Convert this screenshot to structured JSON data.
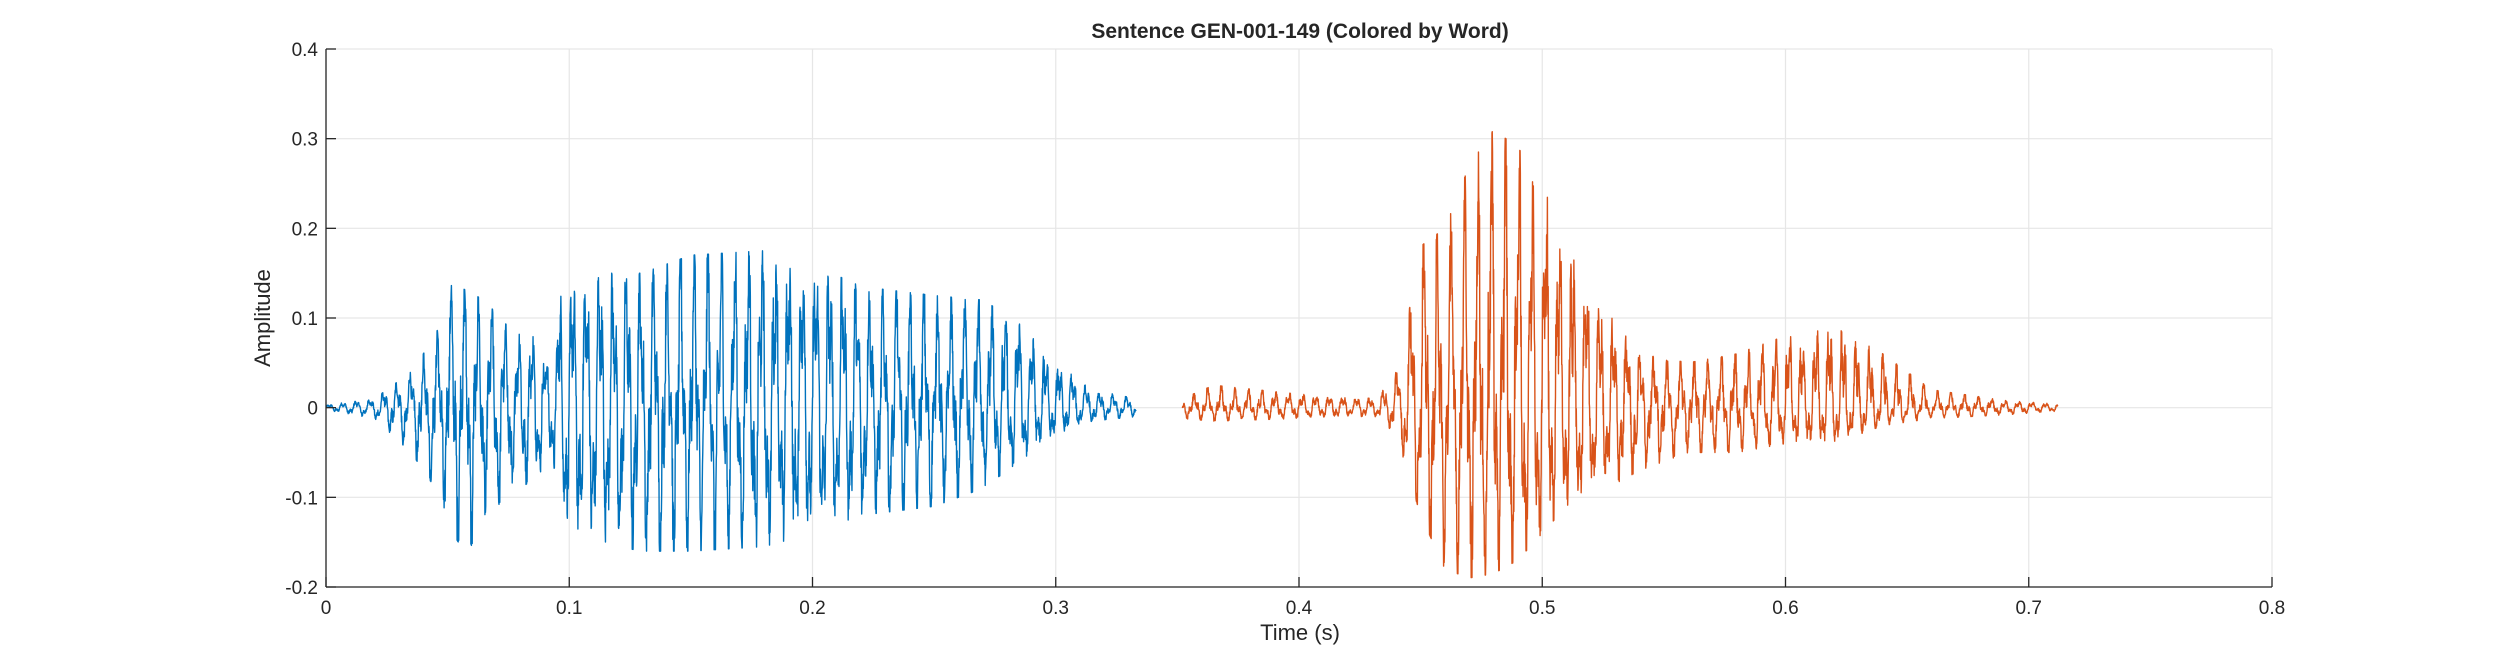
{
  "chart_data": {
    "type": "line",
    "title": "Sentence GEN-001-149 (Colored by Word)",
    "xlabel": "Time (s)",
    "ylabel": "Amplitude",
    "xlim": [
      0,
      0.8
    ],
    "ylim": [
      -0.2,
      0.4
    ],
    "xticks": [
      0,
      0.1,
      0.2,
      0.3,
      0.4,
      0.5,
      0.6,
      0.7,
      0.8
    ],
    "xtick_labels": [
      "0",
      "0.1",
      "0.2",
      "0.3",
      "0.4",
      "0.5",
      "0.6",
      "0.7",
      "0.8"
    ],
    "yticks": [
      -0.2,
      -0.1,
      0,
      0.1,
      0.2,
      0.3,
      0.4
    ],
    "ytick_labels": [
      "-0.2",
      "-0.1",
      "0",
      "0.1",
      "0.2",
      "0.3",
      "0.4"
    ],
    "grid": true,
    "legend": "none",
    "series": [
      {
        "color": "#0072BD",
        "t_start": 0.0,
        "t_end": 0.333,
        "envelope": [
          {
            "t": 0.0,
            "pos": 0.003,
            "neg": -0.003
          },
          {
            "t": 0.02,
            "pos": 0.01,
            "neg": -0.012
          },
          {
            "t": 0.035,
            "pos": 0.04,
            "neg": -0.05
          },
          {
            "t": 0.045,
            "pos": 0.08,
            "neg": -0.09
          },
          {
            "t": 0.052,
            "pos": 0.14,
            "neg": -0.14
          },
          {
            "t": 0.058,
            "pos": 0.13,
            "neg": -0.165
          },
          {
            "t": 0.065,
            "pos": 0.12,
            "neg": -0.12
          },
          {
            "t": 0.075,
            "pos": 0.09,
            "neg": -0.1
          },
          {
            "t": 0.085,
            "pos": 0.08,
            "neg": -0.08
          },
          {
            "t": 0.093,
            "pos": 0.05,
            "neg": -0.06
          },
          {
            "t": 0.097,
            "pos": 0.14,
            "neg": -0.13
          },
          {
            "t": 0.11,
            "pos": 0.15,
            "neg": -0.15
          },
          {
            "t": 0.13,
            "pos": 0.15,
            "neg": -0.16
          },
          {
            "t": 0.15,
            "pos": 0.17,
            "neg": -0.16
          },
          {
            "t": 0.18,
            "pos": 0.175,
            "neg": -0.155
          },
          {
            "t": 0.2,
            "pos": 0.16,
            "neg": -0.14
          },
          {
            "t": 0.22,
            "pos": 0.135,
            "neg": -0.12
          },
          {
            "t": 0.25,
            "pos": 0.125,
            "neg": -0.11
          },
          {
            "t": 0.27,
            "pos": 0.12,
            "neg": -0.09
          },
          {
            "t": 0.285,
            "pos": 0.095,
            "neg": -0.06
          },
          {
            "t": 0.3,
            "pos": 0.05,
            "neg": -0.03
          },
          {
            "t": 0.315,
            "pos": 0.02,
            "neg": -0.015
          },
          {
            "t": 0.333,
            "pos": 0.01,
            "neg": -0.01
          }
        ]
      },
      {
        "color": "#D95319",
        "t_start": 0.352,
        "t_end": 0.712,
        "envelope": [
          {
            "t": 0.352,
            "pos": 0.01,
            "neg": -0.012
          },
          {
            "t": 0.365,
            "pos": 0.025,
            "neg": -0.015
          },
          {
            "t": 0.4,
            "pos": 0.015,
            "neg": -0.012
          },
          {
            "t": 0.432,
            "pos": 0.01,
            "neg": -0.01
          },
          {
            "t": 0.44,
            "pos": 0.04,
            "neg": -0.03
          },
          {
            "t": 0.45,
            "pos": 0.18,
            "neg": -0.12
          },
          {
            "t": 0.46,
            "pos": 0.2,
            "neg": -0.18
          },
          {
            "t": 0.47,
            "pos": 0.27,
            "neg": -0.19
          },
          {
            "t": 0.48,
            "pos": 0.31,
            "neg": -0.185
          },
          {
            "t": 0.49,
            "pos": 0.29,
            "neg": -0.17
          },
          {
            "t": 0.5,
            "pos": 0.25,
            "neg": -0.14
          },
          {
            "t": 0.51,
            "pos": 0.2,
            "neg": -0.11
          },
          {
            "t": 0.52,
            "pos": 0.13,
            "neg": -0.1
          },
          {
            "t": 0.54,
            "pos": 0.06,
            "neg": -0.07
          },
          {
            "t": 0.56,
            "pos": 0.05,
            "neg": -0.05
          },
          {
            "t": 0.58,
            "pos": 0.06,
            "neg": -0.05
          },
          {
            "t": 0.6,
            "pos": 0.08,
            "neg": -0.04
          },
          {
            "t": 0.62,
            "pos": 0.09,
            "neg": -0.04
          },
          {
            "t": 0.64,
            "pos": 0.06,
            "neg": -0.02
          },
          {
            "t": 0.66,
            "pos": 0.02,
            "neg": -0.012
          },
          {
            "t": 0.69,
            "pos": 0.008,
            "neg": -0.008
          },
          {
            "t": 0.712,
            "pos": 0.004,
            "neg": -0.004
          }
        ]
      }
    ]
  }
}
